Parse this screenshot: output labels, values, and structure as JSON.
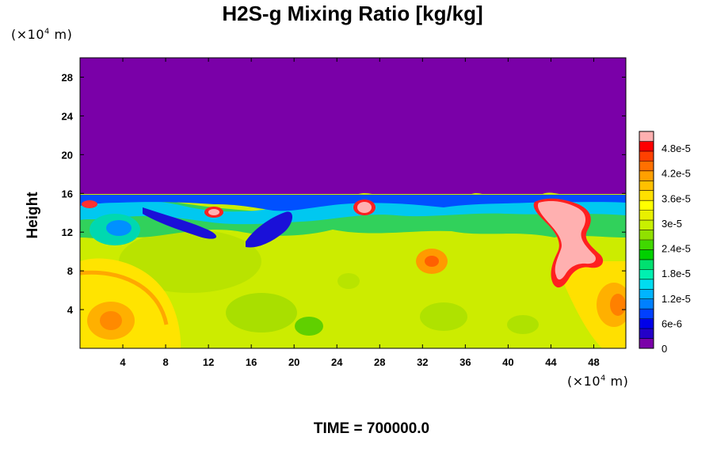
{
  "chart_data": {
    "type": "heatmap",
    "title": "H2S-g Mixing Ratio [kg/kg]",
    "ylabel": "Height",
    "y_unit": {
      "prefix": "(×10",
      "exp": "4",
      "suffix": " m)"
    },
    "x_unit": {
      "prefix": "(×10",
      "exp": "4",
      "suffix": " m)"
    },
    "xlim": [
      0,
      51
    ],
    "ylim": [
      0,
      30
    ],
    "x_ticks": [
      4,
      8,
      12,
      16,
      20,
      24,
      28,
      32,
      36,
      40,
      44,
      48
    ],
    "y_ticks": [
      4,
      8,
      12,
      16,
      20,
      24,
      28
    ],
    "colorbar": {
      "ticks": [
        "0",
        "6e-6",
        "1.2e-5",
        "1.8e-5",
        "2.4e-5",
        "3e-5",
        "3.6e-5",
        "4.2e-5",
        "4.8e-5"
      ],
      "tick_values": [
        0,
        6e-06,
        1.2e-05,
        1.8e-05,
        2.4e-05,
        3e-05,
        3.6e-05,
        4.2e-05,
        4.8e-05
      ],
      "vmin": 0,
      "vmax": 5.2e-05,
      "colors": [
        "#7a00a8",
        "#2400c8",
        "#0000e8",
        "#0040ff",
        "#0080ff",
        "#00b4ff",
        "#00dcf0",
        "#00f0b0",
        "#00e070",
        "#00d000",
        "#40d800",
        "#90e000",
        "#c8f000",
        "#e8f000",
        "#ffff00",
        "#ffe000",
        "#ffc000",
        "#ffa000",
        "#ff7000",
        "#ff4000",
        "#ff0000",
        "#ffb0b0"
      ]
    },
    "field_summary": [
      {
        "region": "upper layer above ~15.5",
        "value": 0
      },
      {
        "region": "bulk lower layer",
        "value": 3.5e-05
      },
      {
        "region": "plume near x≈44-50, y≈8-16",
        "value": 5.2e-05
      },
      {
        "region": "dark blue tongue near x≈17-20, y≈10-13",
        "value": 2e-06
      }
    ]
  },
  "time_label": "TIME = 700000.0"
}
